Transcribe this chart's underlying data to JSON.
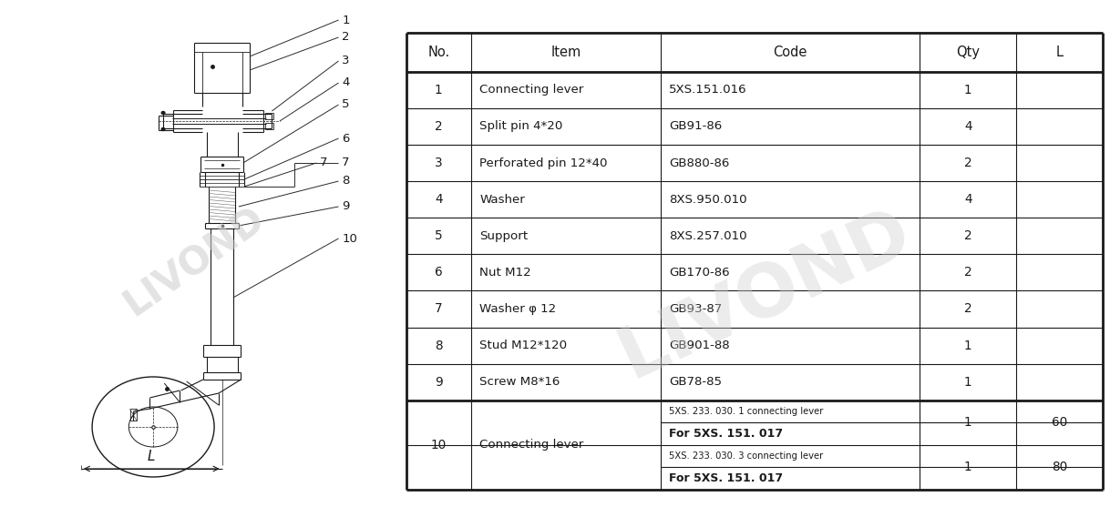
{
  "bg_color": "#ffffff",
  "line_color": "#1a1a1a",
  "text_color": "#1a1a1a",
  "watermark_color": "#cccccc",
  "table_headers": [
    "No.",
    "Item",
    "Code",
    "Qty",
    "L"
  ],
  "table_data": [
    [
      "1",
      "Connecting lever",
      "5XS.151.016",
      "1",
      ""
    ],
    [
      "2",
      "Split pin 4*20",
      "GB91-86",
      "4",
      ""
    ],
    [
      "3",
      "Perforated pin 12*40",
      "GB880-86",
      "2",
      ""
    ],
    [
      "4",
      "Washer",
      "8XS.950.010",
      "4",
      ""
    ],
    [
      "5",
      "Support",
      "8XS.257.010",
      "2",
      ""
    ],
    [
      "6",
      "Nut M12",
      "GB170-86",
      "2",
      ""
    ],
    [
      "7",
      "Washer φ 12",
      "GB93-87",
      "2",
      ""
    ],
    [
      "8",
      "Stud M12*120",
      "GB901-88",
      "1",
      ""
    ],
    [
      "9",
      "Screw M8*16",
      "GB78-85",
      "1",
      ""
    ]
  ],
  "row10_no": "10",
  "row10_item": "Connecting lever",
  "row10_sub1_code_top": "5XS. 233. 030. 1 connecting lever",
  "row10_sub1_code_bot": "For 5XS. 151. 017",
  "row10_sub1_qty": "1",
  "row10_sub1_L": "60",
  "row10_sub2_code_top": "5XS. 233. 030. 3 connecting lever",
  "row10_sub2_code_bot": "For 5XS. 151. 017",
  "row10_sub2_qty": "1",
  "row10_sub2_L": "80",
  "leader_nums": [
    "1",
    "2",
    "3",
    "4",
    "5",
    "6",
    "7",
    "8",
    "9",
    "10"
  ]
}
